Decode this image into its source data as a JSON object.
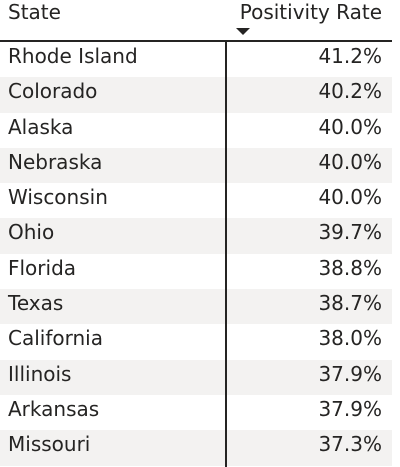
{
  "table": {
    "columns": {
      "state": "State",
      "rate": "Positivity Rate"
    },
    "sort_indicator_icon": "sort-descending-icon",
    "rows": [
      {
        "state": "Rhode Island",
        "rate": "41.2%"
      },
      {
        "state": "Colorado",
        "rate": "40.2%"
      },
      {
        "state": "Alaska",
        "rate": "40.0%"
      },
      {
        "state": "Nebraska",
        "rate": "40.0%"
      },
      {
        "state": "Wisconsin",
        "rate": "40.0%"
      },
      {
        "state": "Ohio",
        "rate": "39.7%"
      },
      {
        "state": "Florida",
        "rate": "38.8%"
      },
      {
        "state": "Texas",
        "rate": "38.7%"
      },
      {
        "state": "California",
        "rate": "38.0%"
      },
      {
        "state": "Illinois",
        "rate": "37.9%"
      },
      {
        "state": "Arkansas",
        "rate": "37.9%"
      },
      {
        "state": "Missouri",
        "rate": "37.3%"
      }
    ]
  },
  "colors": {
    "text": "#252423",
    "alt_row": "#f3f2f1",
    "background": "#ffffff"
  }
}
